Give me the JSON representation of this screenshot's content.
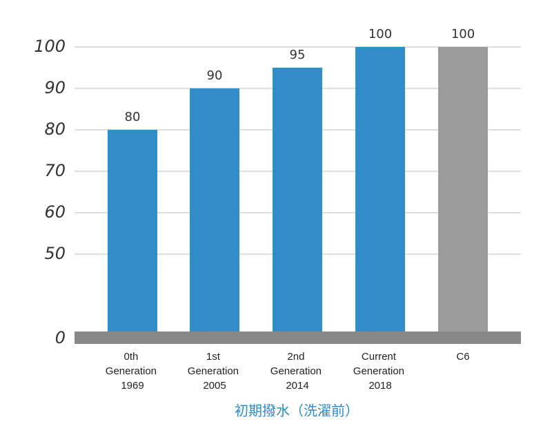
{
  "chart_data": {
    "type": "bar",
    "x_label": "初期撥水（洗濯前）",
    "categories": [
      "0th Generation 1969",
      "1st Generation 2005",
      "2nd Generation 2014",
      "Current Generation 2018",
      "C6"
    ],
    "values": [
      80,
      90,
      95,
      100,
      100
    ],
    "colors": [
      "#318dc8",
      "#318dc8",
      "#318dc8",
      "#318dc8",
      "#9b9b9b"
    ],
    "ylim": [
      0,
      100
    ],
    "yticks": [
      0,
      50,
      60,
      70,
      80,
      90,
      100
    ],
    "grid": true
  }
}
